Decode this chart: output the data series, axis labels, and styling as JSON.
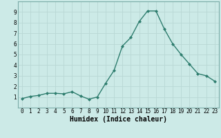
{
  "x": [
    0,
    1,
    2,
    3,
    4,
    5,
    6,
    7,
    8,
    9,
    10,
    11,
    12,
    13,
    14,
    15,
    16,
    17,
    18,
    19,
    20,
    21,
    22,
    23
  ],
  "y": [
    0.85,
    1.05,
    1.15,
    1.35,
    1.35,
    1.3,
    1.5,
    1.1,
    0.8,
    1.0,
    2.3,
    3.5,
    5.8,
    6.6,
    8.1,
    9.1,
    9.1,
    7.4,
    6.0,
    5.0,
    4.1,
    3.2,
    3.0,
    2.5
  ],
  "line_color": "#2e7d6e",
  "marker": "D",
  "marker_size": 2.0,
  "xlabel": "Humidex (Indice chaleur)",
  "xlim": [
    -0.5,
    23.5
  ],
  "ylim": [
    0,
    10
  ],
  "yticks": [
    1,
    2,
    3,
    4,
    5,
    6,
    7,
    8,
    9
  ],
  "xticks": [
    0,
    1,
    2,
    3,
    4,
    5,
    6,
    7,
    8,
    9,
    10,
    11,
    12,
    13,
    14,
    15,
    16,
    17,
    18,
    19,
    20,
    21,
    22,
    23
  ],
  "bg_color": "#cceae7",
  "grid_color": "#b8d8d5",
  "tick_fontsize": 5.5,
  "xlabel_fontsize": 7.0,
  "linewidth": 1.0
}
